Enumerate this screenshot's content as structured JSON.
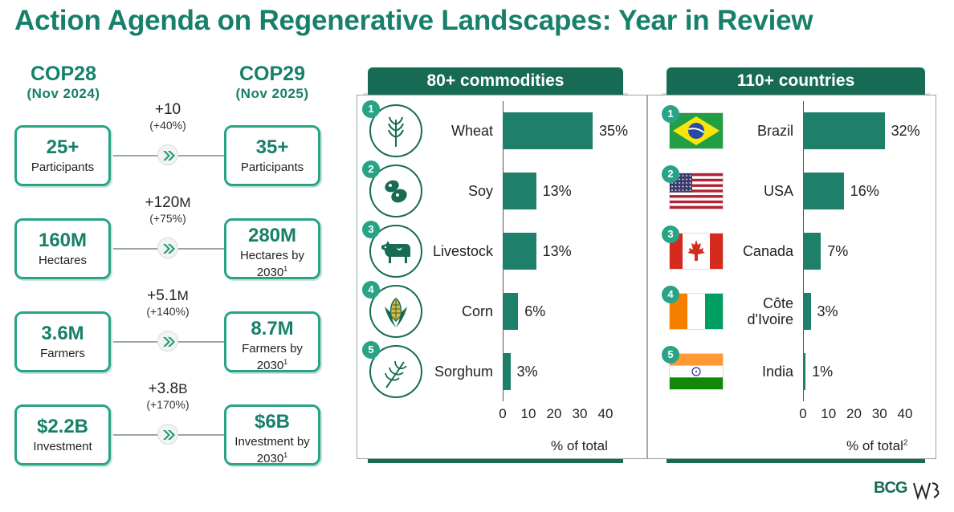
{
  "title": "Action Agenda on Regenerative Landscapes: Year in Review",
  "left": {
    "cop28": {
      "title": "COP28",
      "date": "(Nov 2024)"
    },
    "cop29": {
      "title": "COP29",
      "date": "(Nov 2025)"
    },
    "rows": [
      {
        "from_value": "25+",
        "from_label": "Participants",
        "delta": "+10",
        "delta_unit": "",
        "delta_pct": "(+40%)",
        "to_value": "35+",
        "to_label": "Participants",
        "to_label2": "",
        "to_sup": ""
      },
      {
        "from_value": "160M",
        "from_label": "Hectares",
        "delta": "+120",
        "delta_unit": "M",
        "delta_pct": "(+75%)",
        "to_value": "280M",
        "to_label": "Hectares by",
        "to_label2": "2030",
        "to_sup": "1"
      },
      {
        "from_value": "3.6M",
        "from_label": "Farmers",
        "delta": "+5.1",
        "delta_unit": "M",
        "delta_pct": "(+140%)",
        "to_value": "8.7M",
        "to_label": "Farmers by",
        "to_label2": "2030",
        "to_sup": "1"
      },
      {
        "from_value": "$2.2B",
        "from_label": "Investment",
        "delta": "+3.8",
        "delta_unit": "B",
        "delta_pct": "(+170%)",
        "to_value": "$6B",
        "to_label": "Investment by",
        "to_label2": "2030",
        "to_sup": "1"
      }
    ]
  },
  "chart_data": [
    {
      "type": "bar",
      "orientation": "horizontal",
      "title": "80+ commodities",
      "categories": [
        "Wheat",
        "Soy",
        "Livestock",
        "Corn",
        "Sorghum"
      ],
      "values": [
        35,
        13,
        13,
        6,
        3
      ],
      "value_labels": [
        "35%",
        "13%",
        "13%",
        "6%",
        "3%"
      ],
      "icons": [
        "wheat-icon",
        "soybean-icon",
        "cow-icon",
        "corn-icon",
        "sorghum-icon"
      ],
      "xlim": [
        0,
        40
      ],
      "xticks": [
        "0",
        "10",
        "20",
        "30",
        "40"
      ],
      "xlabel": "% of total",
      "xlabel_sup": "",
      "bar_color": "#1e7f6a"
    },
    {
      "type": "bar",
      "orientation": "horizontal",
      "title": "110+ countries",
      "categories": [
        "Brazil",
        "USA",
        "Canada",
        "Côte d'Ivoire",
        "India"
      ],
      "values": [
        32,
        16,
        7,
        3,
        1
      ],
      "value_labels": [
        "32%",
        "16%",
        "7%",
        "3%",
        "1%"
      ],
      "icons": [
        "brazil-flag-icon",
        "usa-flag-icon",
        "canada-flag-icon",
        "cote-divoire-flag-icon",
        "india-flag-icon"
      ],
      "xlim": [
        0,
        40
      ],
      "xticks": [
        "0",
        "10",
        "20",
        "30",
        "40"
      ],
      "xlabel": "% of total",
      "xlabel_sup": "2",
      "bar_color": "#1e7f6a"
    }
  ],
  "logos": {
    "bcg": "BCG",
    "wbc": "WBC"
  }
}
